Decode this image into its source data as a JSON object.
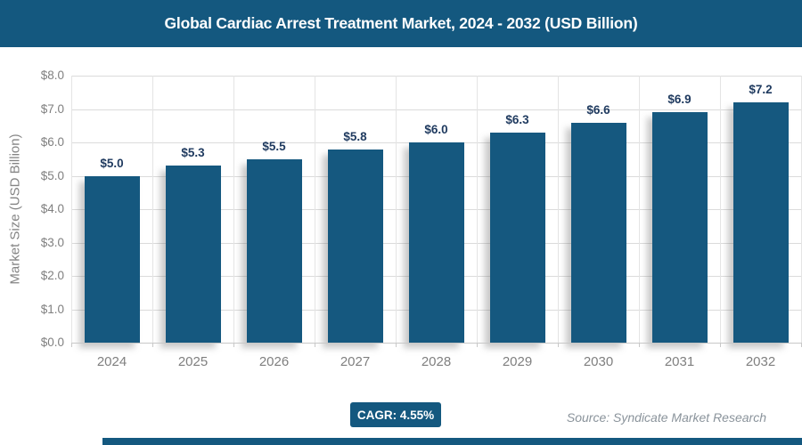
{
  "header": {
    "title": "Global Cardiac Arrest Treatment Market, 2024 - 2032 (USD Billion)"
  },
  "chart_data": {
    "type": "bar",
    "title": "Global Cardiac Arrest Treatment Market, 2024 - 2032 (USD Billion)",
    "categories": [
      "2024",
      "2025",
      "2026",
      "2027",
      "2028",
      "2029",
      "2030",
      "2031",
      "2032"
    ],
    "values": [
      5.0,
      5.3,
      5.5,
      5.8,
      6.0,
      6.3,
      6.6,
      6.9,
      7.2
    ],
    "bar_labels": [
      "$5.0",
      "$5.3",
      "$5.5",
      "$5.8",
      "$6.0",
      "$6.3",
      "$6.6",
      "$6.9",
      "$7.2"
    ],
    "xlabel": "",
    "ylabel": "Market Size (USD Billion)",
    "ylim": [
      0,
      8
    ],
    "ytick_step": 1,
    "ytick_labels": [
      "$0.0",
      "$1.0",
      "$2.0",
      "$3.0",
      "$4.0",
      "$5.0",
      "$6.0",
      "$7.0",
      "$8.0"
    ],
    "grid": true,
    "legend": false
  },
  "footer": {
    "cagr_label": "CAGR: 4.55%",
    "source": "Source: Syndicate Market Research"
  },
  "colors": {
    "accent": "#14587F",
    "bar_fill": "#15587F",
    "grid_line": "#DBDBDB",
    "grid_line_vertical": "#E4E4E4",
    "axis_line": "#C8C8C8",
    "axis_text": "#7F7F7F",
    "value_label": "#1F3A5F",
    "source_text": "#8A939B",
    "title_text": "#FFFFFF"
  }
}
